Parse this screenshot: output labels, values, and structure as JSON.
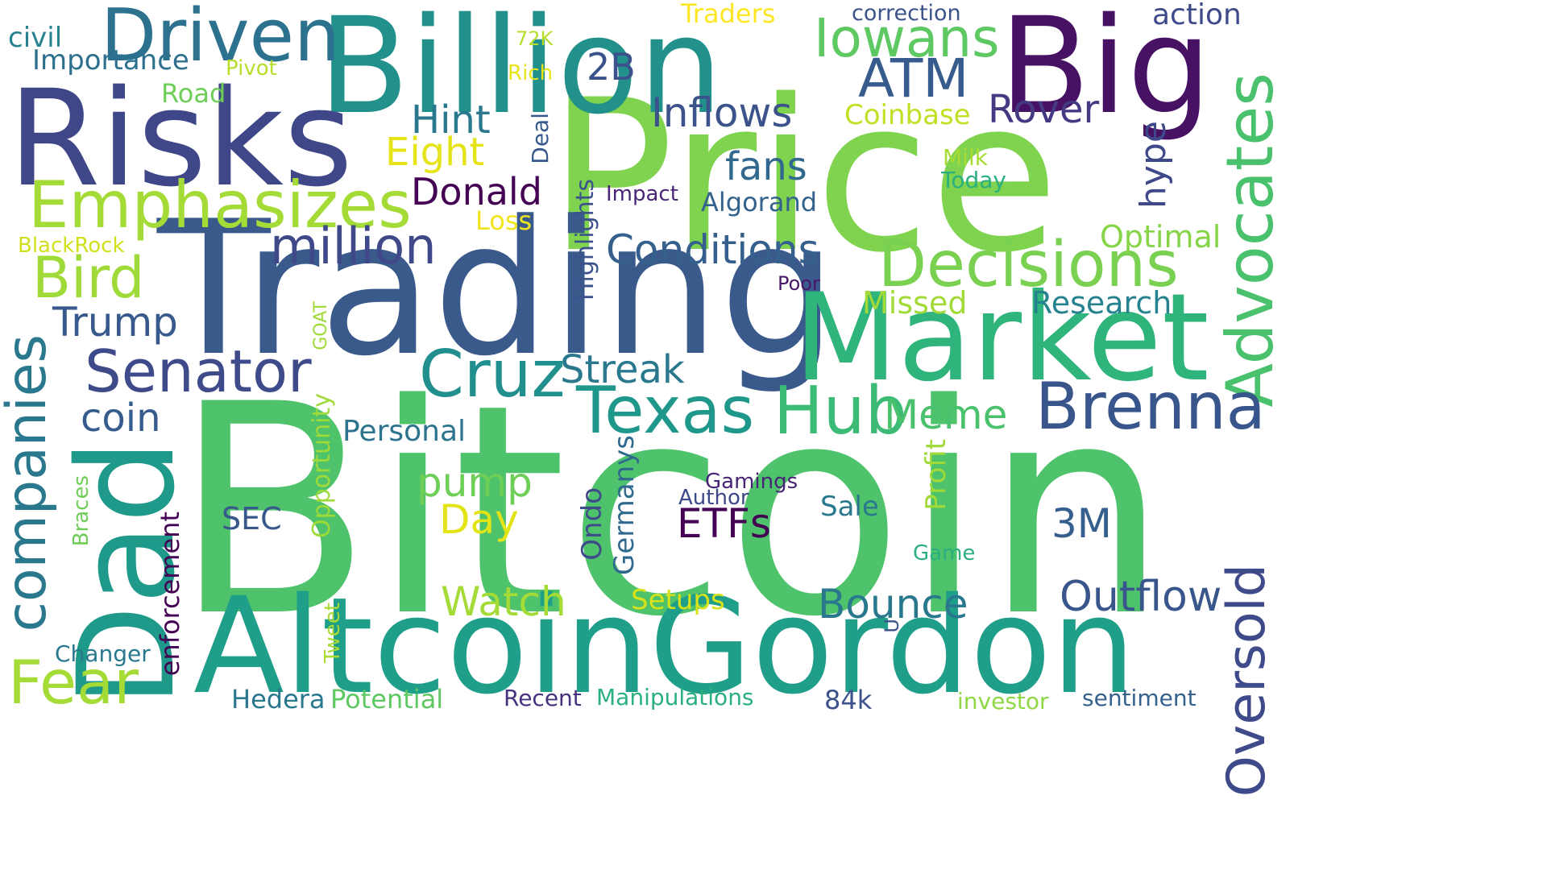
{
  "wordcloud": {
    "words": [
      {
        "text": "Bitcoin",
        "color": "#4fc36b"
      },
      {
        "text": "Price",
        "color": "#7fd34e"
      },
      {
        "text": "Trading",
        "color": "#3b5a8c"
      },
      {
        "text": "Billion",
        "color": "#22918c"
      },
      {
        "text": "Big",
        "color": "#471164"
      },
      {
        "text": "Risks",
        "color": "#3f4788"
      },
      {
        "text": "Market",
        "color": "#2fb47c"
      },
      {
        "text": "AltcoinGordon",
        "color": "#1f9e89"
      },
      {
        "text": "Dad",
        "color": "#1f9a8a"
      },
      {
        "text": "Driven",
        "color": "#2c728e"
      },
      {
        "text": "Emphasizes",
        "color": "#a5db36"
      },
      {
        "text": "Decisions",
        "color": "#7ad151"
      },
      {
        "text": "Advocates",
        "color": "#4ac16d"
      },
      {
        "text": "Senator",
        "color": "#3e4a89"
      },
      {
        "text": "Texas",
        "color": "#1f988b"
      },
      {
        "text": "Cruz",
        "color": "#218f8d"
      },
      {
        "text": "Hub",
        "color": "#3bbb75"
      },
      {
        "text": "Brenna",
        "color": "#39568c"
      },
      {
        "text": "Oversold",
        "color": "#3e4a89"
      },
      {
        "text": "companies",
        "color": "#2a788e"
      },
      {
        "text": "Fear",
        "color": "#a5db36"
      },
      {
        "text": "Bird",
        "color": "#a0da39"
      },
      {
        "text": "million",
        "color": "#3f4889"
      },
      {
        "text": "Iowans",
        "color": "#5ec962"
      },
      {
        "text": "ATM",
        "color": "#375b8d"
      },
      {
        "text": "Inflows",
        "color": "#3b528b"
      },
      {
        "text": "Conditions",
        "color": "#35608d"
      },
      {
        "text": "Bounce",
        "color": "#2a788e"
      },
      {
        "text": "Outflow",
        "color": "#39568c"
      },
      {
        "text": "Trump",
        "color": "#38598c"
      },
      {
        "text": "coin",
        "color": "#365c8d"
      },
      {
        "text": "Streak",
        "color": "#2a788e"
      },
      {
        "text": "Eight",
        "color": "#e5e419"
      },
      {
        "text": "Hint",
        "color": "#2a788e"
      },
      {
        "text": "Donald",
        "color": "#440154"
      },
      {
        "text": "fans",
        "color": "#31688e"
      },
      {
        "text": "Rover",
        "color": "#443983"
      },
      {
        "text": "Watch",
        "color": "#a5db36"
      },
      {
        "text": "pump",
        "color": "#6ece58"
      },
      {
        "text": "Day",
        "color": "#e2e418"
      },
      {
        "text": "ETFs",
        "color": "#440154"
      },
      {
        "text": "3M",
        "color": "#355f8d"
      },
      {
        "text": "Meme",
        "color": "#4ac16d"
      },
      {
        "text": "Research",
        "color": "#26828e"
      },
      {
        "text": "Missed",
        "color": "#a2da37"
      },
      {
        "text": "Optimal",
        "color": "#86d549"
      },
      {
        "text": "hype",
        "color": "#3f4889"
      },
      {
        "text": "2B",
        "color": "#3b528b"
      },
      {
        "text": "civil",
        "color": "#26828e"
      },
      {
        "text": "Importance",
        "color": "#2d708e"
      },
      {
        "text": "action",
        "color": "#3e4a89"
      },
      {
        "text": "correction",
        "color": "#3b528b"
      },
      {
        "text": "Traders",
        "color": "#fde725"
      },
      {
        "text": "72K",
        "color": "#b5de2b"
      },
      {
        "text": "Pivot",
        "color": "#b8de29"
      },
      {
        "text": "Rich",
        "color": "#e7e419"
      },
      {
        "text": "Road",
        "color": "#6ece58"
      },
      {
        "text": "Coinbase",
        "color": "#c2df23"
      },
      {
        "text": "Deal",
        "color": "#38598c"
      },
      {
        "text": "Highlights",
        "color": "#3b528b"
      },
      {
        "text": "Impact",
        "color": "#482576"
      },
      {
        "text": "Algorand",
        "color": "#33638d"
      },
      {
        "text": "Loss",
        "color": "#f1e51d"
      },
      {
        "text": "Milk",
        "color": "#a8db34"
      },
      {
        "text": "Today",
        "color": "#2ab07f"
      },
      {
        "text": "BlackRock",
        "color": "#d0e11c"
      },
      {
        "text": "Poor",
        "color": "#481769"
      },
      {
        "text": "GOAT",
        "color": "#a0da39"
      },
      {
        "text": "Opportunity",
        "color": "#a0da39"
      },
      {
        "text": "Personal",
        "color": "#2c738e"
      },
      {
        "text": "Germanys",
        "color": "#30698e"
      },
      {
        "text": "Ondo",
        "color": "#3e4a89"
      },
      {
        "text": "Profit",
        "color": "#a0da39"
      },
      {
        "text": "Gamings",
        "color": "#482475"
      },
      {
        "text": "Author",
        "color": "#3e4989"
      },
      {
        "text": "Sale",
        "color": "#2a788e"
      },
      {
        "text": "Game",
        "color": "#2ab07f"
      },
      {
        "text": "SEC",
        "color": "#38588c"
      },
      {
        "text": "Braces",
        "color": "#6ece58"
      },
      {
        "text": "enforcement",
        "color": "#440154"
      },
      {
        "text": "Setups",
        "color": "#d8e219"
      },
      {
        "text": "Changer",
        "color": "#2a788e"
      },
      {
        "text": "Tweet",
        "color": "#a8db34"
      },
      {
        "text": "U",
        "color": "#3b528b"
      },
      {
        "text": "Hedera",
        "color": "#2a788e"
      },
      {
        "text": "Potential",
        "color": "#5ec962"
      },
      {
        "text": "Recent",
        "color": "#46327e"
      },
      {
        "text": "Manipulations",
        "color": "#2ab07f"
      },
      {
        "text": "84k",
        "color": "#3b528b"
      },
      {
        "text": "investor",
        "color": "#8fd744"
      },
      {
        "text": "sentiment",
        "color": "#34618d"
      }
    ]
  }
}
